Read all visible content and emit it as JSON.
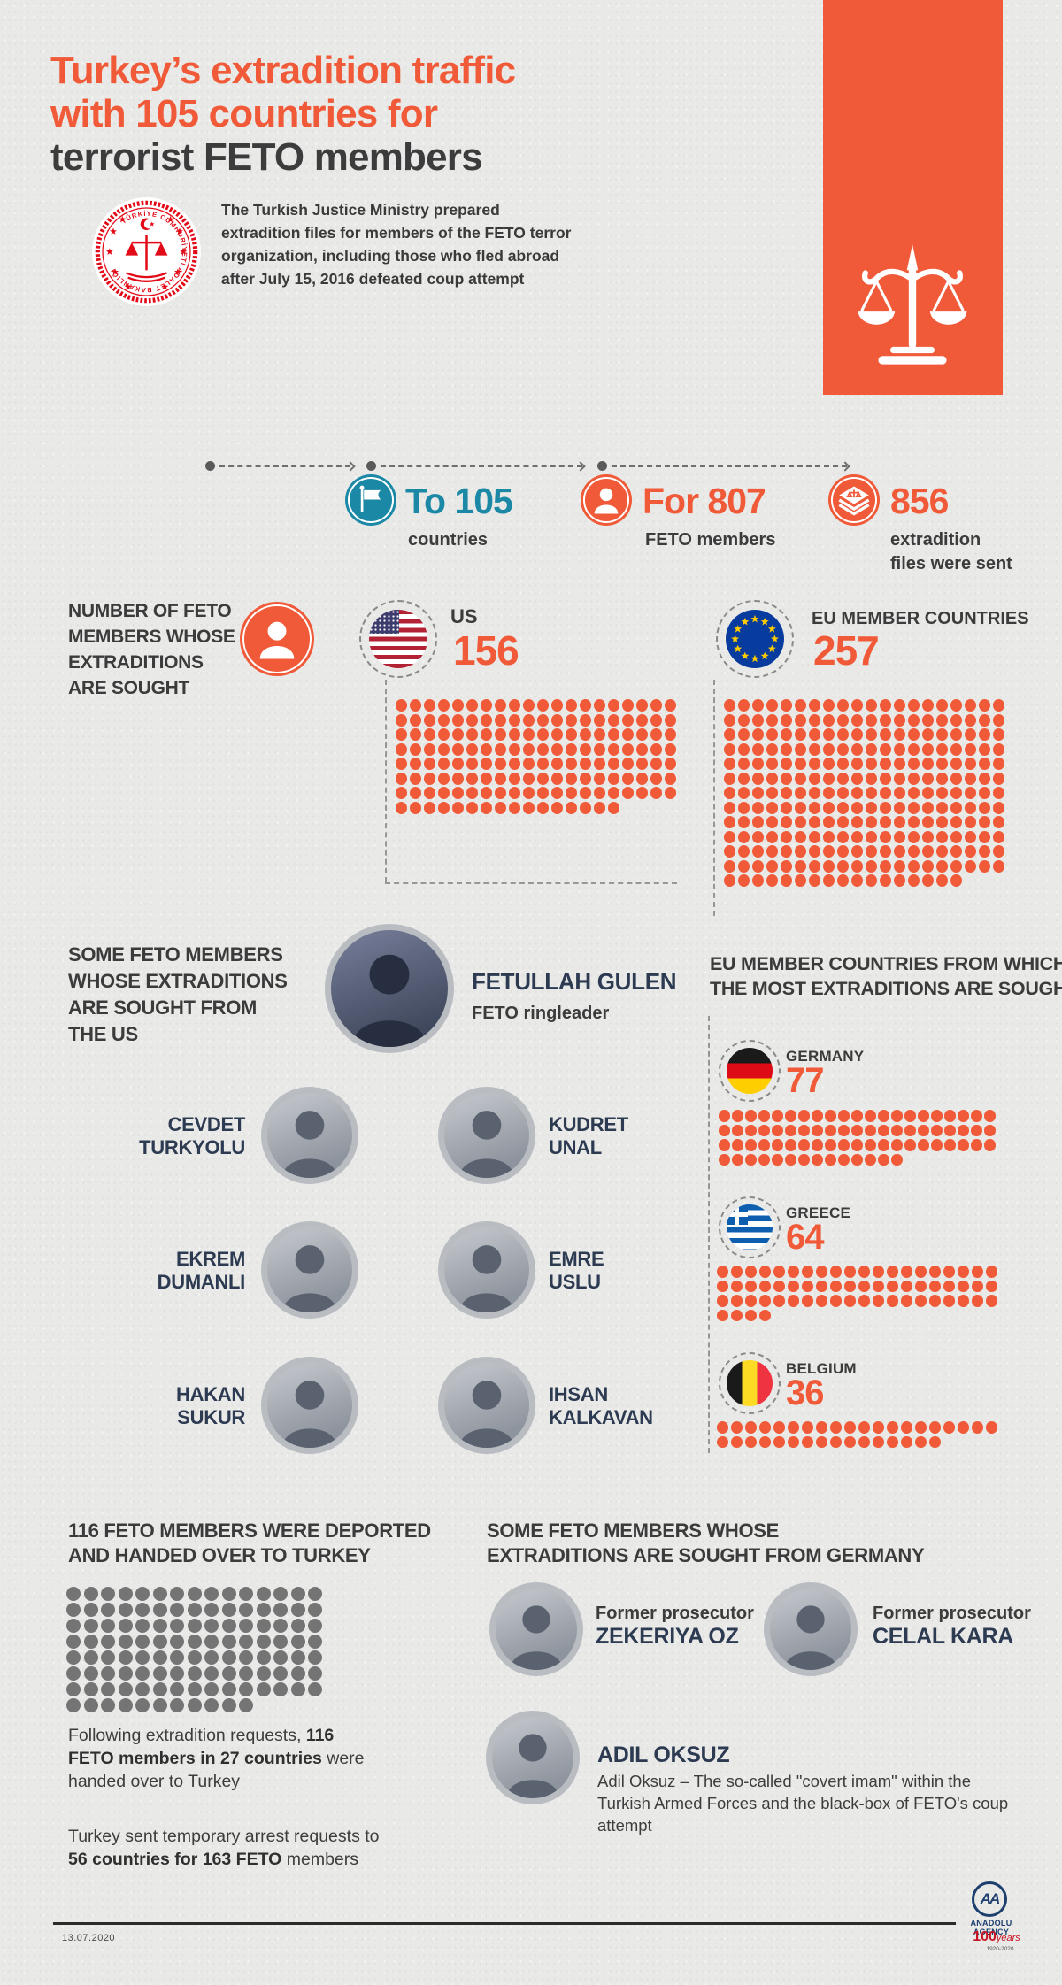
{
  "colors": {
    "orange": "#f05a38",
    "teal": "#1b89a6",
    "navy": "#2c3a52",
    "dark": "#3c3c3c",
    "dot_gray": "#747474",
    "red": "#e30a17"
  },
  "title": {
    "lines": [
      "Turkey’s extradition traffic",
      "with 105 countries for",
      "terrorist FETO members"
    ]
  },
  "intro": {
    "lines": [
      "The Turkish Justice Ministry prepared",
      "extradition files for members of the FETO terror",
      "organization, including those who fled abroad",
      "after July 15, 2016 defeated coup attempt"
    ]
  },
  "seal": {
    "text": "TÜRKİYE CUMHURİYETİ ADALET BAKANLIĞI"
  },
  "stats": [
    {
      "icon": "flag-icon",
      "value": "To 105",
      "label": "countries"
    },
    {
      "icon": "person-icon",
      "value": "For 807",
      "label": "FETO members"
    },
    {
      "icon": "extradition-files-icon",
      "value": "856",
      "label_lines": [
        "extradition",
        "files were sent"
      ]
    }
  ],
  "sought": {
    "heading_lines": [
      "NUMBER OF FETO",
      "MEMBERS WHOSE",
      "EXTRADITIONS",
      "ARE SOUGHT"
    ],
    "us": {
      "label": "US",
      "value": 156
    },
    "eu": {
      "label": "EU MEMBER COUNTRIES",
      "value": 257
    }
  },
  "us_members": {
    "heading_lines": [
      "SOME FETO MEMBERS",
      "WHOSE EXTRADITIONS",
      "ARE SOUGHT FROM",
      "THE US"
    ],
    "leader": {
      "name": "FETULLAH GULEN",
      "role": "FETO ringleader"
    },
    "people": [
      {
        "name_lines": [
          "CEVDET",
          "TURKYOLU"
        ]
      },
      {
        "name_lines": [
          "KUDRET",
          "UNAL"
        ]
      },
      {
        "name_lines": [
          "EKREM",
          "DUMANLI"
        ]
      },
      {
        "name_lines": [
          "EMRE",
          "USLU"
        ]
      },
      {
        "name_lines": [
          "HAKAN",
          "SUKUR"
        ]
      },
      {
        "name_lines": [
          "IHSAN",
          "KALKAVAN"
        ]
      }
    ]
  },
  "eu_countries": {
    "heading_lines": [
      "EU MEMBER COUNTRIES FROM WHICH",
      "THE MOST EXTRADITIONS ARE SOUGHT"
    ],
    "items": [
      {
        "name": "GERMANY",
        "value": 77
      },
      {
        "name": "GREECE",
        "value": 64
      },
      {
        "name": "BELGIUM",
        "value": 36
      }
    ]
  },
  "deported": {
    "heading_lines": [
      "116 FETO MEMBERS WERE DEPORTED",
      "AND HANDED OVER TO TURKEY"
    ],
    "count": 116,
    "note1": [
      {
        "t": "Following extradition requests, "
      },
      {
        "t": "116 FETO members in 27 countries",
        "b": true
      },
      {
        "t": " were handed over to Turkey"
      }
    ],
    "note2": [
      {
        "t": "Turkey sent temporary arrest requests to "
      },
      {
        "t": "56 countries for 163 FETO",
        "b": true
      },
      {
        "t": " members"
      }
    ]
  },
  "germany_members": {
    "heading_lines": [
      "SOME FETO MEMBERS WHOSE",
      "EXTRADITIONS ARE SOUGHT FROM GERMANY"
    ],
    "people": [
      {
        "role": "Former prosecutor",
        "name": "ZEKERIYA OZ"
      },
      {
        "role": "Former prosecutor",
        "name": "CELAL KARA"
      },
      {
        "name": "ADIL OKSUZ",
        "desc": "Adil Oksuz – The so-called \"covert imam\" within the Turkish Armed Forces and the black-box of FETO's coup attempt"
      }
    ]
  },
  "footer": {
    "date": "13.07.2020",
    "aa": "AA",
    "agency": "ANADOLU AGENCY",
    "years_num": "100",
    "years_word": "years",
    "year_range": "1920-2020"
  },
  "chart_data": [
    {
      "type": "bar",
      "title": "Number of FETO members whose extraditions are sought",
      "categories": [
        "US",
        "EU member countries"
      ],
      "values": [
        156,
        257
      ],
      "legend_position": "none",
      "ylabel": "FETO members"
    },
    {
      "type": "bar",
      "title": "EU member countries from which the most extraditions are sought",
      "categories": [
        "Germany",
        "Greece",
        "Belgium"
      ],
      "values": [
        77,
        64,
        36
      ],
      "legend_position": "none",
      "ylabel": "FETO members"
    },
    {
      "type": "bar",
      "title": "FETO members deported and handed over to Turkey",
      "categories": [
        "Deported and handed over"
      ],
      "values": [
        116
      ],
      "legend_position": "none"
    },
    {
      "type": "table",
      "title": "Extradition traffic summary",
      "rows": [
        [
          "Countries extradition files sent to",
          105
        ],
        [
          "FETO members sought",
          807
        ],
        [
          "Extradition files sent",
          856
        ],
        [
          "FETO members handed over to Turkey",
          116
        ],
        [
          "Countries that handed members over",
          27
        ],
        [
          "Countries receiving temporary arrest requests",
          56
        ],
        [
          "FETO members in temporary arrest requests",
          163
        ]
      ]
    }
  ]
}
